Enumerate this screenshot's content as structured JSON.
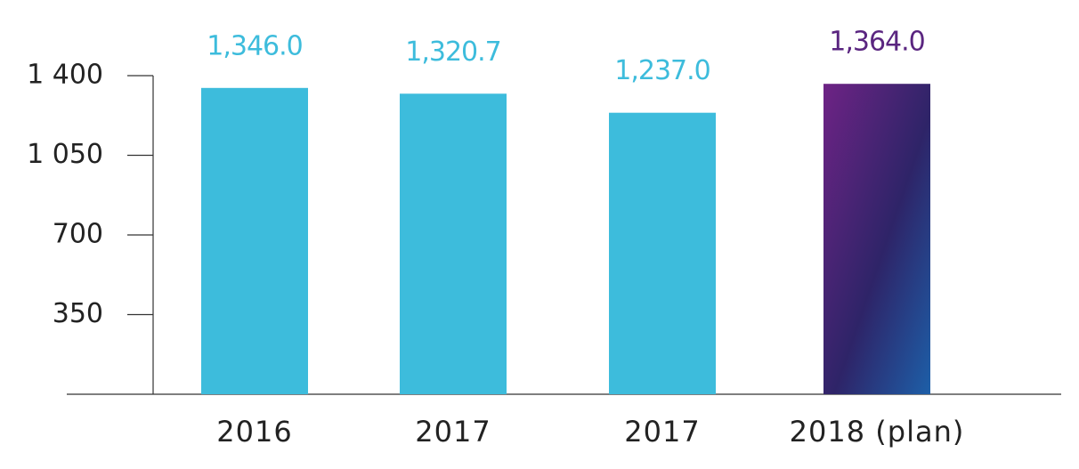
{
  "chart_data": {
    "type": "bar",
    "categories": [
      "2016",
      "2017",
      "2017",
      "2018 (plan)"
    ],
    "values": [
      1346.0,
      1320.7,
      1237.0,
      1364.0
    ],
    "value_labels": [
      "1,346.0",
      "1,320.7",
      "1,237.0",
      "1,364.0"
    ],
    "colors": [
      "#3dbcdc",
      "#3dbcdc",
      "#3dbcdc",
      "#5a2580"
    ],
    "ylim": [
      0,
      1400
    ],
    "yticks": [
      350,
      700,
      {
        "value": 1050,
        "label": "1 050"
      },
      {
        "value": 1400,
        "label": "1 400"
      }
    ]
  }
}
